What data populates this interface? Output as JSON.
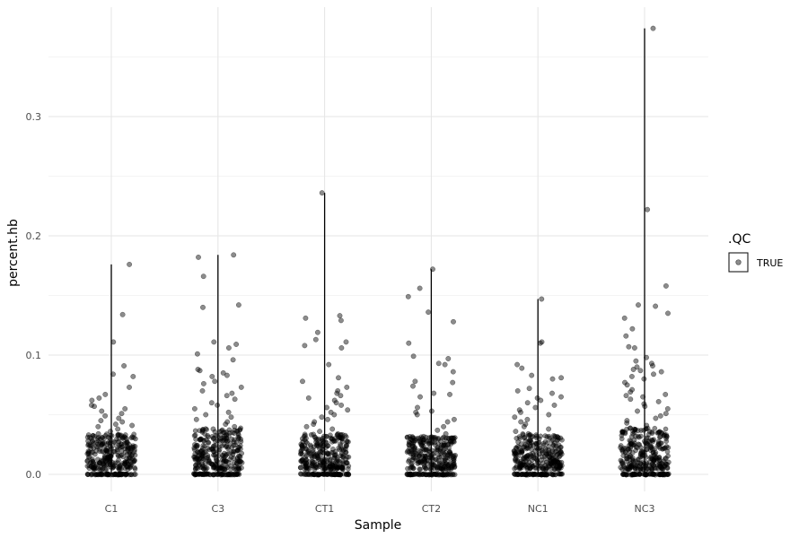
{
  "chart_data": {
    "type": "scatter",
    "subtype": "jittered strip plot with vertical range lines",
    "xlabel": "Sample",
    "ylabel": "percent.hb",
    "categories": [
      "C1",
      "C3",
      "CT1",
      "CT2",
      "NC1",
      "NC3"
    ],
    "ylim": [
      -0.0,
      0.375
    ],
    "yticks": [
      0.0,
      0.1,
      0.2,
      0.3
    ],
    "ytick_labels": [
      "0.0",
      "0.1",
      "0.2",
      "0.3"
    ],
    "grid": true,
    "legend": {
      "title": ".QC",
      "entries": [
        "TRUE"
      ],
      "placement": "right"
    },
    "point_color": "#000000",
    "point_opacity": 0.45,
    "groups": [
      {
        "sample": "C1",
        "max": 0.176,
        "dense_core": [
          0.0,
          0.03
        ],
        "points_above_core": [
          0.176,
          0.134,
          0.111,
          0.091,
          0.084,
          0.082,
          0.073,
          0.067,
          0.064,
          0.062,
          0.058,
          0.057,
          0.055,
          0.053,
          0.051,
          0.049,
          0.047,
          0.045,
          0.044,
          0.042,
          0.041,
          0.04,
          0.038,
          0.036,
          0.034
        ]
      },
      {
        "sample": "C3",
        "max": 0.184,
        "dense_core": [
          0.0,
          0.035
        ],
        "points_above_core": [
          0.184,
          0.182,
          0.166,
          0.142,
          0.14,
          0.111,
          0.109,
          0.106,
          0.101,
          0.096,
          0.088,
          0.087,
          0.085,
          0.083,
          0.082,
          0.078,
          0.076,
          0.073,
          0.07,
          0.068,
          0.066,
          0.063,
          0.06,
          0.058,
          0.055,
          0.052,
          0.05,
          0.048,
          0.046,
          0.044,
          0.042,
          0.04,
          0.038
        ]
      },
      {
        "sample": "CT1",
        "max": 0.236,
        "dense_core": [
          0.0,
          0.03
        ],
        "points_above_core": [
          0.236,
          0.133,
          0.131,
          0.129,
          0.119,
          0.113,
          0.111,
          0.108,
          0.106,
          0.092,
          0.081,
          0.078,
          0.073,
          0.07,
          0.068,
          0.066,
          0.064,
          0.062,
          0.06,
          0.058,
          0.056,
          0.054,
          0.052,
          0.05,
          0.048,
          0.046,
          0.044,
          0.042,
          0.04,
          0.038,
          0.036,
          0.034
        ]
      },
      {
        "sample": "CT2",
        "max": 0.172,
        "dense_core": [
          0.0,
          0.028
        ],
        "points_above_core": [
          0.172,
          0.156,
          0.149,
          0.136,
          0.128,
          0.11,
          0.099,
          0.097,
          0.093,
          0.092,
          0.086,
          0.078,
          0.077,
          0.074,
          0.068,
          0.067,
          0.065,
          0.056,
          0.053,
          0.052,
          0.05,
          0.046,
          0.044,
          0.04,
          0.037,
          0.034
        ]
      },
      {
        "sample": "NC1",
        "max": 0.147,
        "dense_core": [
          0.0,
          0.03
        ],
        "points_above_core": [
          0.147,
          0.111,
          0.11,
          0.092,
          0.089,
          0.083,
          0.081,
          0.08,
          0.072,
          0.07,
          0.068,
          0.065,
          0.064,
          0.062,
          0.06,
          0.058,
          0.056,
          0.054,
          0.052,
          0.05,
          0.048,
          0.046,
          0.044,
          0.042,
          0.04,
          0.038,
          0.036,
          0.034
        ]
      },
      {
        "sample": "NC3",
        "max": 0.374,
        "dense_core": [
          0.0,
          0.035
        ],
        "points_above_core": [
          0.374,
          0.222,
          0.158,
          0.142,
          0.141,
          0.135,
          0.131,
          0.122,
          0.116,
          0.107,
          0.106,
          0.098,
          0.095,
          0.093,
          0.091,
          0.09,
          0.088,
          0.087,
          0.086,
          0.084,
          0.082,
          0.08,
          0.077,
          0.075,
          0.071,
          0.069,
          0.067,
          0.066,
          0.065,
          0.063,
          0.061,
          0.059,
          0.057,
          0.055,
          0.053,
          0.051,
          0.049,
          0.047,
          0.045,
          0.043,
          0.041
        ]
      }
    ]
  }
}
